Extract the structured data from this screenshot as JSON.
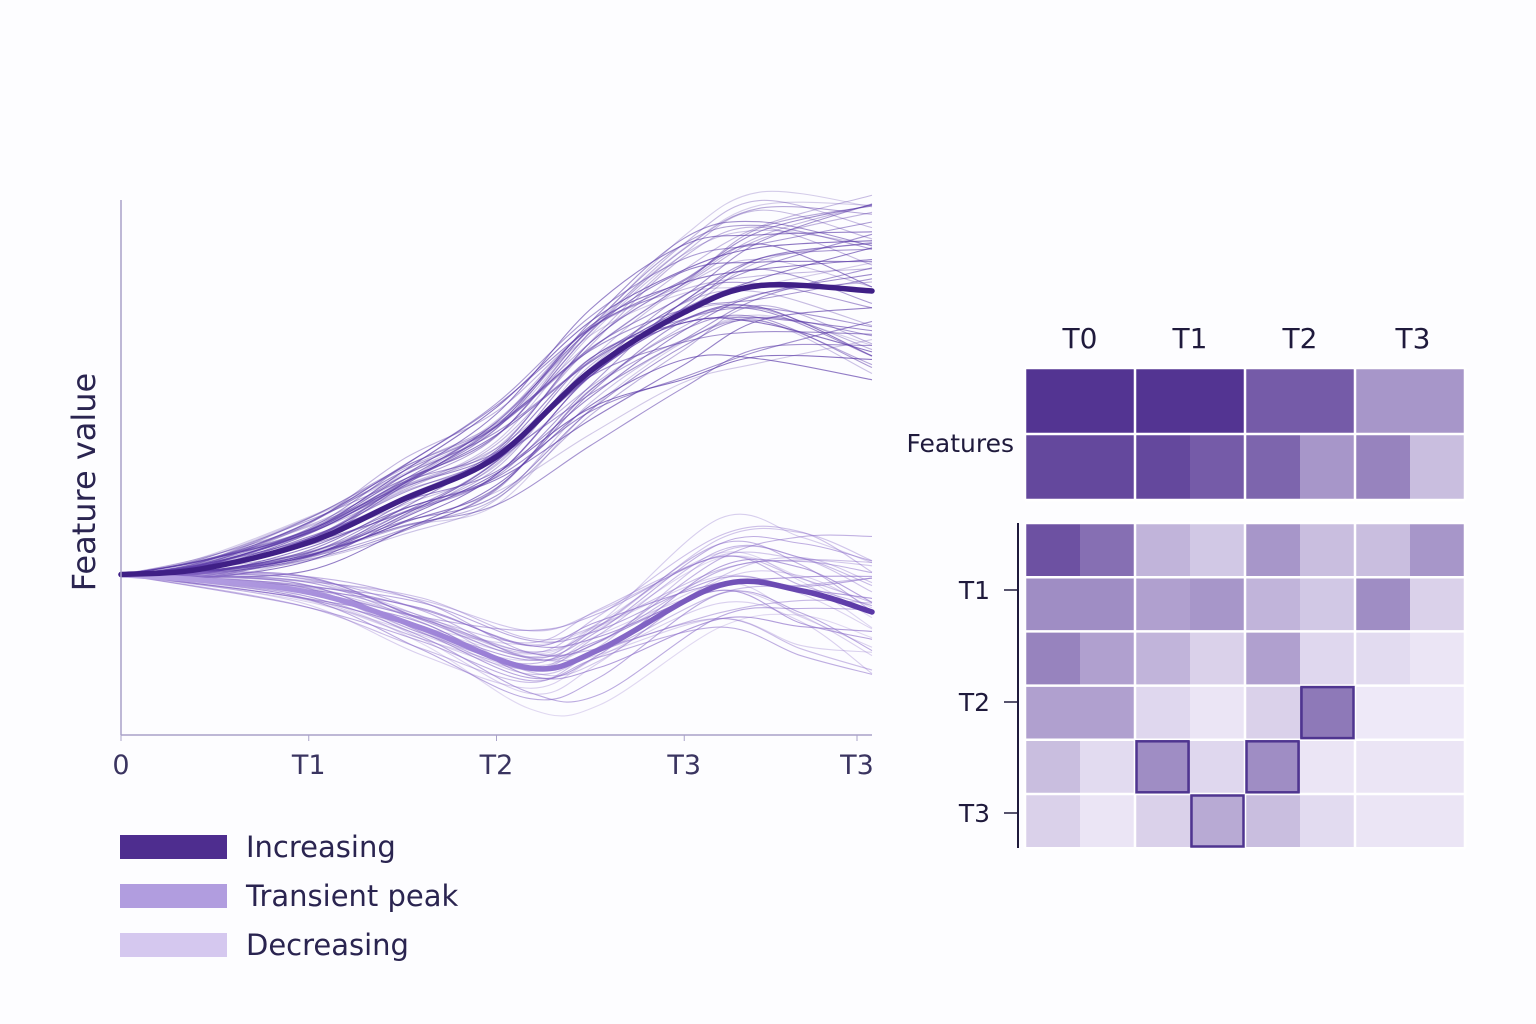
{
  "chart_data": [
    {
      "type": "line",
      "ylabel": "Feature value",
      "xlabel": "",
      "x_ticks": [
        {
          "x": 0,
          "label": "0"
        },
        {
          "x": 1,
          "label": "T1"
        },
        {
          "x": 2,
          "label": "T2"
        },
        {
          "x": 3,
          "label": "T3"
        },
        {
          "x": 4,
          "label": "T3"
        }
      ],
      "xlim": [
        0,
        4
      ],
      "ylim": [
        0,
        10
      ],
      "grid": false,
      "legend_position": "bottom-left",
      "series": [
        {
          "name": "Increasing",
          "color": "#3f1f86",
          "points": [
            [
              0,
              3.0
            ],
            [
              0.42,
              3.1
            ],
            [
              1,
              3.6
            ],
            [
              1.5,
              4.4
            ],
            [
              2,
              5.2
            ],
            [
              2.5,
              6.8
            ],
            [
              3,
              7.9
            ],
            [
              3.4,
              8.4
            ],
            [
              4,
              8.3
            ]
          ]
        },
        {
          "name": "Transient peak",
          "color": "#6a47b5",
          "points": [
            [
              0,
              3.0
            ],
            [
              0.95,
              2.7
            ],
            [
              1.6,
              2.0
            ],
            [
              2.18,
              1.25
            ],
            [
              2.55,
              1.6
            ],
            [
              3.19,
              2.8
            ],
            [
              3.62,
              2.7
            ],
            [
              4,
              2.3
            ]
          ]
        },
        {
          "name": "Decreasing",
          "color": "#d5c8ef",
          "points": []
        }
      ],
      "legend": [
        {
          "label": "Increasing",
          "color": "#4e2d8f"
        },
        {
          "label": "Transient peak",
          "color": "#b19ddf"
        },
        {
          "label": "Decreasing",
          "color": "#d5c8ef"
        }
      ]
    },
    {
      "type": "heatmap",
      "column_labels": [
        "T0",
        "T1",
        "T2",
        "T3"
      ],
      "top_block_label": "Features",
      "row_labels": [
        "T1",
        "T2",
        "T3"
      ],
      "color_low": "#f3effb",
      "color_high": "#4b2a8c",
      "top_block": [
        [
          0.95,
          0.95,
          0.95,
          0.95,
          0.75,
          0.75,
          0.45,
          0.45
        ],
        [
          0.85,
          0.85,
          0.85,
          0.75,
          0.7,
          0.45,
          0.55,
          0.25
        ]
      ],
      "bottom_block": [
        [
          0.8,
          0.65,
          0.3,
          0.2,
          0.45,
          0.25,
          0.25,
          0.45
        ],
        [
          0.5,
          0.5,
          0.4,
          0.45,
          0.3,
          0.2,
          0.5,
          0.15
        ],
        [
          0.55,
          0.4,
          0.3,
          0.15,
          0.4,
          0.12,
          0.1,
          0.05
        ],
        [
          0.4,
          0.4,
          0.12,
          0.05,
          0.15,
          0.6,
          0.03,
          0.03
        ],
        [
          0.25,
          0.1,
          0.5,
          0.12,
          0.5,
          0.05,
          0.05,
          0.05
        ],
        [
          0.15,
          0.05,
          0.15,
          0.35,
          0.25,
          0.1,
          0.05,
          0.05
        ]
      ],
      "highlighted_cells": [
        [
          3,
          5
        ],
        [
          4,
          2
        ],
        [
          4,
          4
        ],
        [
          5,
          3
        ]
      ]
    }
  ]
}
